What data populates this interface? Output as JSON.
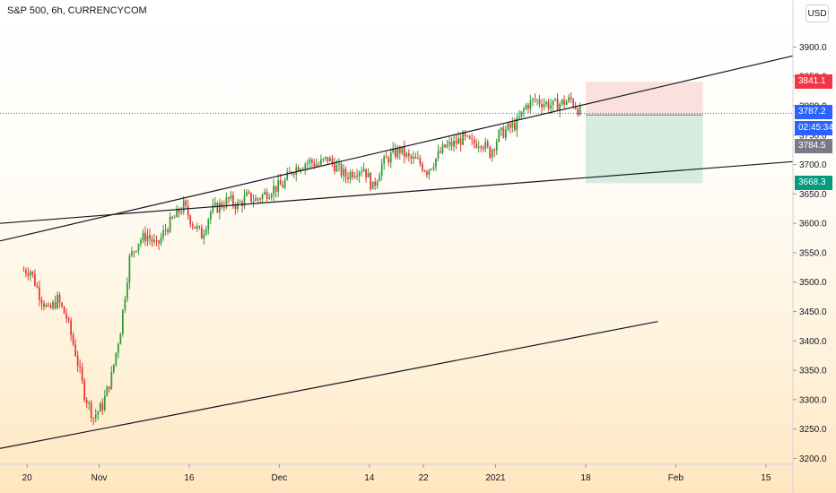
{
  "header": {
    "title": "S&P 500, 6h, CURRENCYCOM",
    "currency_button": "USD"
  },
  "price_tags": {
    "stop": {
      "value": "3841.1",
      "color": "#f23645"
    },
    "last": {
      "value": "3787.2",
      "color": "#2962ff"
    },
    "countdown": {
      "value": "02:45:34",
      "color": "#2962ff"
    },
    "entry": {
      "value": "3784.5",
      "color": "#787b86"
    },
    "target": {
      "value": "3668.3",
      "color": "#089981"
    }
  },
  "colors": {
    "up": "#26a69a",
    "down": "#ef5350",
    "up_candle": "#2e9d3a",
    "down_candle": "#e53935",
    "risk_zone": "#f8d7d4",
    "reward_zone": "#cfe9dc",
    "line": "#131722",
    "last_price_line": "#2962ff"
  },
  "chart_data": {
    "type": "candlestick",
    "title": "S&P 500, 6h, CURRENCYCOM",
    "xlabel": "",
    "ylabel": "",
    "ylim": [
      3190,
      3980
    ],
    "y_ticks": [
      3200.0,
      3250.0,
      3300.0,
      3350.0,
      3400.0,
      3450.0,
      3500.0,
      3550.0,
      3600.0,
      3650.0,
      3700.0,
      3750.0,
      3800.0,
      3850.0,
      3900.0
    ],
    "x_ticks": [
      {
        "label": "20",
        "index": 0
      },
      {
        "label": "Nov",
        "index": 8
      },
      {
        "label": "16",
        "index": 18
      },
      {
        "label": "Dec",
        "index": 28
      },
      {
        "label": "14",
        "index": 38
      },
      {
        "label": "22",
        "index": 44
      },
      {
        "label": "2021",
        "index": 52
      },
      {
        "label": "18",
        "index": 62
      },
      {
        "label": "Feb",
        "index": 72
      },
      {
        "label": "15",
        "index": 82
      }
    ],
    "x_range": [
      -3.0,
      85.0
    ],
    "grid": false,
    "daily_closes": [
      3520,
      3480,
      3450,
      3470,
      3440,
      3380,
      3310,
      3270,
      3290,
      3340,
      3420,
      3540,
      3570,
      3580,
      3560,
      3590,
      3610,
      3630,
      3600,
      3580,
      3620,
      3630,
      3640,
      3630,
      3645,
      3640,
      3650,
      3660,
      3665,
      3690,
      3700,
      3705,
      3700,
      3710,
      3695,
      3680,
      3690,
      3695,
      3660,
      3700,
      3715,
      3725,
      3710,
      3705,
      3690,
      3710,
      3730,
      3735,
      3745,
      3735,
      3740,
      3720,
      3750,
      3760,
      3770,
      3800,
      3810,
      3805,
      3800,
      3805,
      3810,
      3790
    ],
    "trendlines": [
      {
        "name": "",
        "points": [
          [
            -3,
            3570
          ],
          [
            85,
            3885
          ]
        ]
      },
      {
        "name": "",
        "points": [
          [
            -3,
            3600
          ],
          [
            85,
            3705
          ]
        ]
      },
      {
        "name": "",
        "points": [
          [
            -3,
            3217
          ],
          [
            70,
            3433
          ]
        ]
      }
    ],
    "position_tool": {
      "x_range": [
        62.0,
        75.0
      ],
      "entry": 3784.5,
      "stop": 3841.1,
      "target": 3668.3
    },
    "last_price": 3787.2
  }
}
